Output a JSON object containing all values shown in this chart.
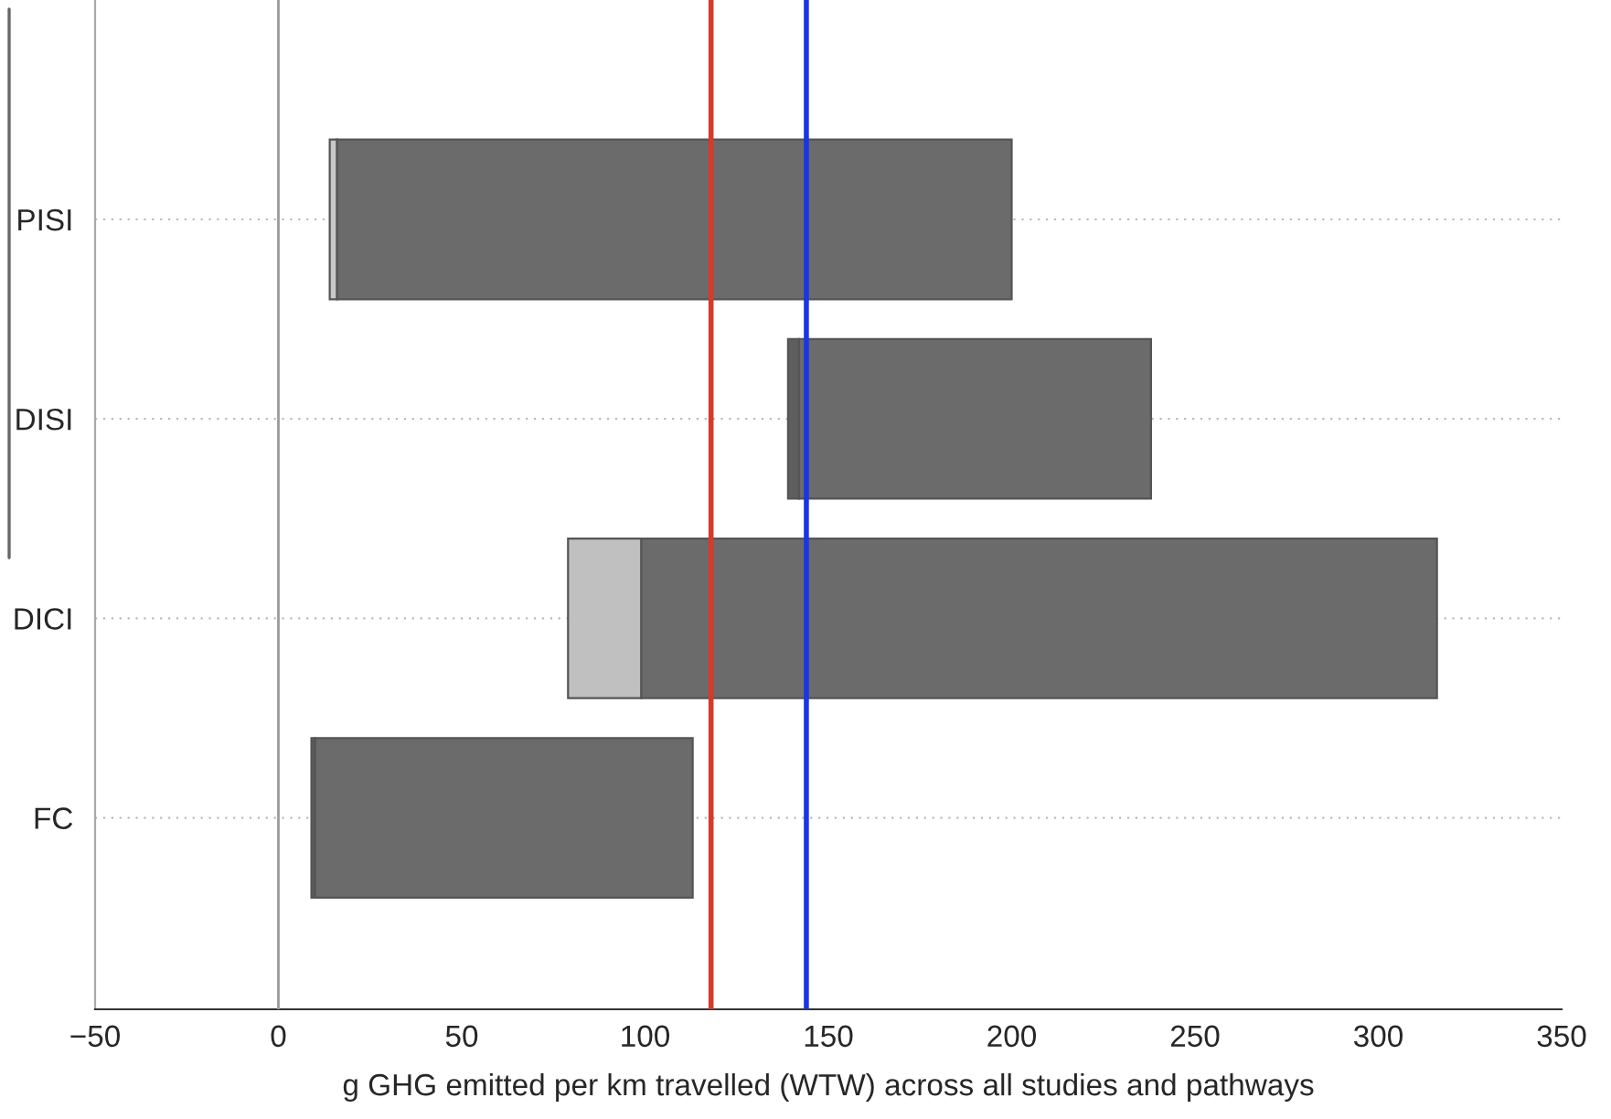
{
  "chart_data": {
    "type": "bar",
    "orientation": "horizontal",
    "categories": [
      "PISI",
      "DISI",
      "DICI",
      "FC"
    ],
    "series": [
      {
        "colors": [
          "#c8c8c8",
          "#5e5e5e",
          "#c0c0c0",
          "#5e5e5e"
        ],
        "base": [
          14,
          139,
          79,
          9
        ],
        "values": [
          2,
          3,
          20,
          1
        ]
      },
      {
        "color": "#6b6b6b",
        "base": [
          16,
          142,
          99,
          10
        ],
        "values": [
          184,
          96,
          217,
          103
        ]
      }
    ],
    "xlabel": "g GHG emitted per km travelled (WTW) across all studies and pathways",
    "xlim": [
      -50,
      350
    ],
    "xticks": [
      {
        "value": -50,
        "label": "−50"
      },
      0,
      50,
      100,
      150,
      200,
      250,
      300,
      350
    ],
    "ref_lines": [
      {
        "axis": "x",
        "value": 0,
        "color": "#9a9a9a"
      },
      {
        "axis": "x",
        "value": 118,
        "color": "#d63a2a"
      },
      {
        "axis": "x",
        "value": 144,
        "color": "#1a35e6"
      }
    ],
    "grid": "y",
    "legend": false
  }
}
